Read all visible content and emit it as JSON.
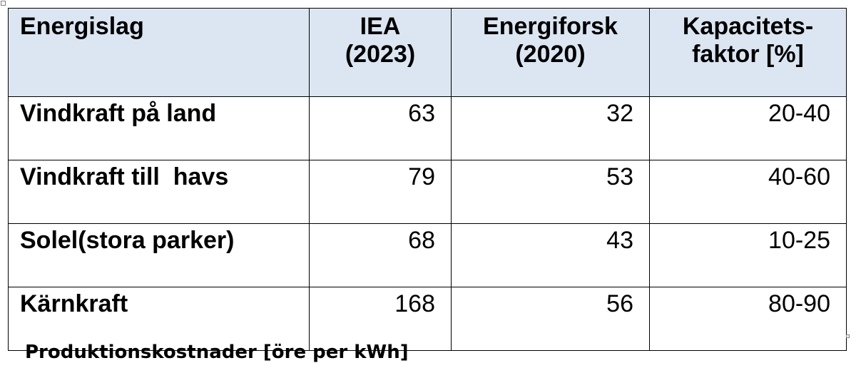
{
  "table": {
    "columns": [
      {
        "lines": [
          "Energislag"
        ]
      },
      {
        "lines": [
          "IEA",
          "(2023)"
        ]
      },
      {
        "lines": [
          "Energiforsk",
          "(2020)"
        ]
      },
      {
        "lines": [
          "Kapacitets-",
          "faktor [%]"
        ]
      }
    ],
    "rows": [
      {
        "name": "Vindkraft på land",
        "iea": "63",
        "energiforsk": "32",
        "kapacitet": "20-40"
      },
      {
        "name": "Vindkraft till  havs",
        "iea": "79",
        "energiforsk": "53",
        "kapacitet": "40-60"
      },
      {
        "name": "Solel(stora parker)",
        "iea": "68",
        "energiforsk": "43",
        "kapacitet": "10-25"
      },
      {
        "name": "Kärnkraft",
        "iea": "168",
        "energiforsk": "56",
        "kapacitet": "80-90"
      }
    ],
    "header_color": "#dce6f2"
  },
  "caption": "Produktionskostnader [öre per kWh]"
}
